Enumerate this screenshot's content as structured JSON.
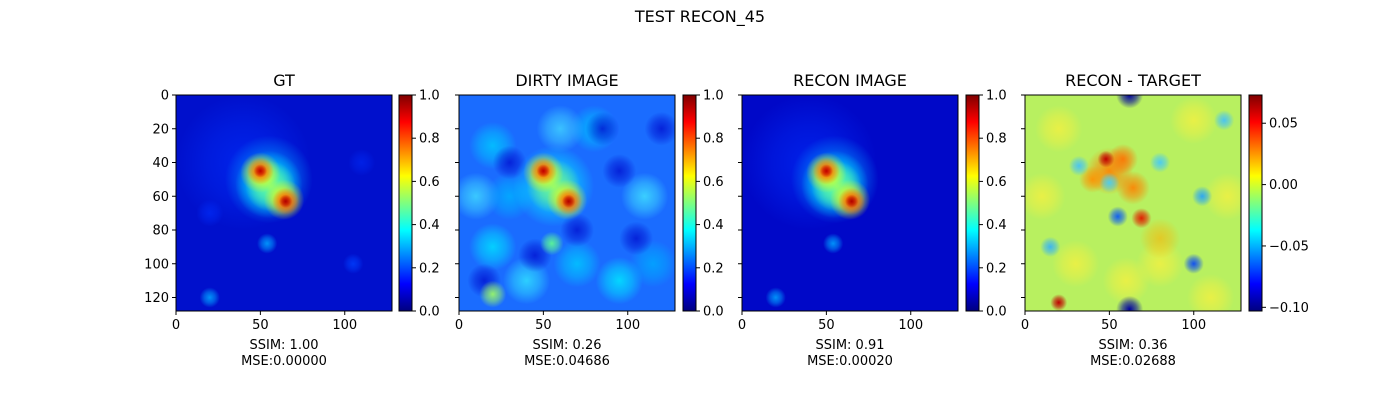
{
  "figure": {
    "suptitle": "TEST RECON_45"
  },
  "colormap": {
    "name": "jet",
    "stops": [
      "#00007f",
      "#0000ff",
      "#007fff",
      "#00ffff",
      "#7fff7f",
      "#ffff00",
      "#ff7f00",
      "#ff0000",
      "#7f0000"
    ]
  },
  "chart_data": [
    {
      "type": "heatmap",
      "title": "GT",
      "xlabel_lines": [
        "SSIM: 1.00",
        "MSE:0.00000"
      ],
      "xticks": [
        0,
        50,
        100
      ],
      "yticks": [
        0,
        20,
        40,
        60,
        80,
        100,
        120
      ],
      "show_ytick_labels": true,
      "image_extent": [
        0,
        128
      ],
      "colorbar": {
        "min": 0.0,
        "max": 1.0,
        "ticks": [
          "0.0",
          "0.2",
          "0.4",
          "0.6",
          "0.8",
          "1.0"
        ],
        "tick_values": [
          0.0,
          0.2,
          0.4,
          0.6,
          0.8,
          1.0
        ]
      }
    },
    {
      "type": "heatmap",
      "title": "DIRTY IMAGE",
      "xlabel_lines": [
        "SSIM: 0.26",
        "MSE:0.04686"
      ],
      "xticks": [
        0,
        50,
        100
      ],
      "yticks": [
        0,
        20,
        40,
        60,
        80,
        100,
        120
      ],
      "show_ytick_labels": false,
      "image_extent": [
        0,
        128
      ],
      "colorbar": {
        "min": 0.0,
        "max": 1.0,
        "ticks": [
          "0.0",
          "0.2",
          "0.4",
          "0.6",
          "0.8",
          "1.0"
        ],
        "tick_values": [
          0.0,
          0.2,
          0.4,
          0.6,
          0.8,
          1.0
        ]
      }
    },
    {
      "type": "heatmap",
      "title": "RECON IMAGE",
      "xlabel_lines": [
        "SSIM: 0.91",
        "MSE:0.00020"
      ],
      "xticks": [
        0,
        50,
        100
      ],
      "yticks": [
        0,
        20,
        40,
        60,
        80,
        100,
        120
      ],
      "show_ytick_labels": false,
      "image_extent": [
        0,
        128
      ],
      "colorbar": {
        "min": 0.0,
        "max": 1.0,
        "ticks": [
          "0.0",
          "0.2",
          "0.4",
          "0.6",
          "0.8",
          "1.0"
        ],
        "tick_values": [
          0.0,
          0.2,
          0.4,
          0.6,
          0.8,
          1.0
        ]
      }
    },
    {
      "type": "heatmap",
      "title": "RECON - TARGET",
      "xlabel_lines": [
        "SSIM: 0.36",
        "MSE:0.02688"
      ],
      "xticks": [
        0,
        50,
        100
      ],
      "yticks": [
        0,
        20,
        40,
        60,
        80,
        100,
        120
      ],
      "show_ytick_labels": false,
      "image_extent": [
        0,
        128
      ],
      "colorbar": {
        "min": -0.103,
        "max": 0.073,
        "ticks": [
          "−0.10",
          "−0.05",
          "0.00",
          "0.05"
        ],
        "tick_values": [
          -0.1,
          -0.05,
          0.0,
          0.05
        ]
      }
    }
  ]
}
